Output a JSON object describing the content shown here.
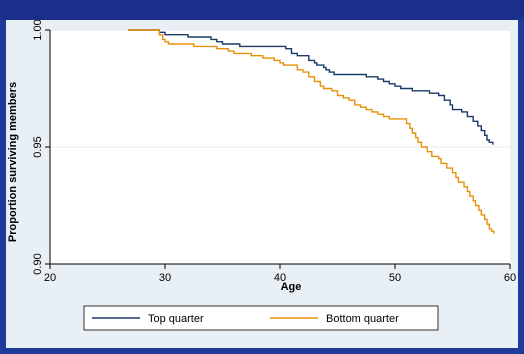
{
  "chart_data": {
    "type": "line",
    "title": "",
    "xlabel": "Age",
    "ylabel": "Proportion surviving members",
    "xlim": [
      20,
      60
    ],
    "ylim": [
      0.9,
      1.0
    ],
    "x_ticks": [
      20,
      30,
      40,
      50,
      60
    ],
    "y_ticks": [
      0.9,
      0.95,
      1.0
    ],
    "x_tick_labels": [
      "20",
      "30",
      "40",
      "50",
      "60"
    ],
    "y_tick_labels": [
      "0.90",
      "0.95",
      "1.00"
    ],
    "grid": true,
    "legend_position": "bottom",
    "series": [
      {
        "name": "Top quarter",
        "color": "#1a3a6a",
        "step": true,
        "points": [
          [
            26.8,
            1.0
          ],
          [
            29.2,
            1.0
          ],
          [
            29.5,
            0.999
          ],
          [
            30.0,
            0.998
          ],
          [
            32.0,
            0.997
          ],
          [
            34.0,
            0.996
          ],
          [
            34.5,
            0.995
          ],
          [
            35.0,
            0.994
          ],
          [
            36.5,
            0.993
          ],
          [
            38.0,
            0.993
          ],
          [
            40.0,
            0.993
          ],
          [
            40.5,
            0.992
          ],
          [
            41.0,
            0.99
          ],
          [
            41.5,
            0.989
          ],
          [
            42.5,
            0.987
          ],
          [
            43.0,
            0.986
          ],
          [
            43.2,
            0.985
          ],
          [
            43.8,
            0.984
          ],
          [
            44.0,
            0.983
          ],
          [
            44.3,
            0.982
          ],
          [
            44.7,
            0.981
          ],
          [
            46.0,
            0.981
          ],
          [
            47.5,
            0.98
          ],
          [
            48.5,
            0.979
          ],
          [
            49.0,
            0.978
          ],
          [
            49.5,
            0.977
          ],
          [
            50.0,
            0.976
          ],
          [
            50.5,
            0.975
          ],
          [
            51.5,
            0.974
          ],
          [
            52.5,
            0.974
          ],
          [
            53.0,
            0.973
          ],
          [
            53.8,
            0.972
          ],
          [
            54.3,
            0.97
          ],
          [
            54.8,
            0.968
          ],
          [
            55.0,
            0.966
          ],
          [
            55.8,
            0.965
          ],
          [
            56.3,
            0.963
          ],
          [
            56.8,
            0.961
          ],
          [
            57.2,
            0.959
          ],
          [
            57.5,
            0.957
          ],
          [
            57.8,
            0.955
          ],
          [
            58.0,
            0.953
          ],
          [
            58.2,
            0.952
          ],
          [
            58.5,
            0.951
          ]
        ]
      },
      {
        "name": "Bottom quarter",
        "color": "#e8900a",
        "step": true,
        "points": [
          [
            26.8,
            1.0
          ],
          [
            29.0,
            1.0
          ],
          [
            29.5,
            0.998
          ],
          [
            29.8,
            0.996
          ],
          [
            30.0,
            0.995
          ],
          [
            30.3,
            0.994
          ],
          [
            31.0,
            0.994
          ],
          [
            32.5,
            0.993
          ],
          [
            34.0,
            0.993
          ],
          [
            34.5,
            0.992
          ],
          [
            35.5,
            0.991
          ],
          [
            36.0,
            0.99
          ],
          [
            37.5,
            0.989
          ],
          [
            38.5,
            0.988
          ],
          [
            39.5,
            0.987
          ],
          [
            40.0,
            0.986
          ],
          [
            40.3,
            0.985
          ],
          [
            41.0,
            0.985
          ],
          [
            41.5,
            0.983
          ],
          [
            42.0,
            0.982
          ],
          [
            42.5,
            0.98
          ],
          [
            43.0,
            0.978
          ],
          [
            43.5,
            0.976
          ],
          [
            43.8,
            0.975
          ],
          [
            44.5,
            0.974
          ],
          [
            45.0,
            0.972
          ],
          [
            45.5,
            0.971
          ],
          [
            46.0,
            0.97
          ],
          [
            46.5,
            0.968
          ],
          [
            47.0,
            0.967
          ],
          [
            47.5,
            0.966
          ],
          [
            48.0,
            0.965
          ],
          [
            48.5,
            0.964
          ],
          [
            49.0,
            0.963
          ],
          [
            49.5,
            0.962
          ],
          [
            50.5,
            0.962
          ],
          [
            51.0,
            0.96
          ],
          [
            51.3,
            0.958
          ],
          [
            51.5,
            0.956
          ],
          [
            51.8,
            0.954
          ],
          [
            52.0,
            0.952
          ],
          [
            52.3,
            0.95
          ],
          [
            52.8,
            0.948
          ],
          [
            53.2,
            0.946
          ],
          [
            53.8,
            0.945
          ],
          [
            54.0,
            0.943
          ],
          [
            54.5,
            0.941
          ],
          [
            55.0,
            0.939
          ],
          [
            55.3,
            0.937
          ],
          [
            55.5,
            0.935
          ],
          [
            56.0,
            0.933
          ],
          [
            56.3,
            0.931
          ],
          [
            56.5,
            0.929
          ],
          [
            56.8,
            0.927
          ],
          [
            57.0,
            0.925
          ],
          [
            57.3,
            0.923
          ],
          [
            57.5,
            0.921
          ],
          [
            57.8,
            0.919
          ],
          [
            58.0,
            0.917
          ],
          [
            58.2,
            0.915
          ],
          [
            58.4,
            0.914
          ],
          [
            58.6,
            0.913
          ]
        ]
      }
    ]
  }
}
